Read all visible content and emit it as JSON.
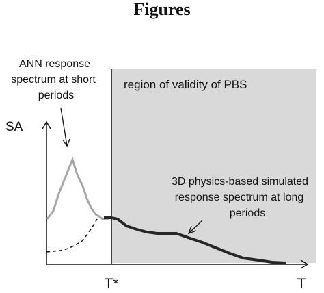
{
  "heading": "Figures",
  "annotations": {
    "ann": [
      "ANN response",
      "spectrum at short",
      "periods"
    ],
    "region": "region of validity of PBS",
    "pbs": [
      "3D physics-based simulated",
      "response spectrum at long",
      "periods"
    ]
  },
  "axes": {
    "y_label": "SA",
    "x_label": "T",
    "tstar_label": "T*"
  },
  "colors": {
    "region_fill": "#d9d9d9",
    "ann_curve": "#a6a6a6",
    "pbs_curve": "#262626",
    "axis": "#111111",
    "dashed_curve": "#111111"
  }
}
